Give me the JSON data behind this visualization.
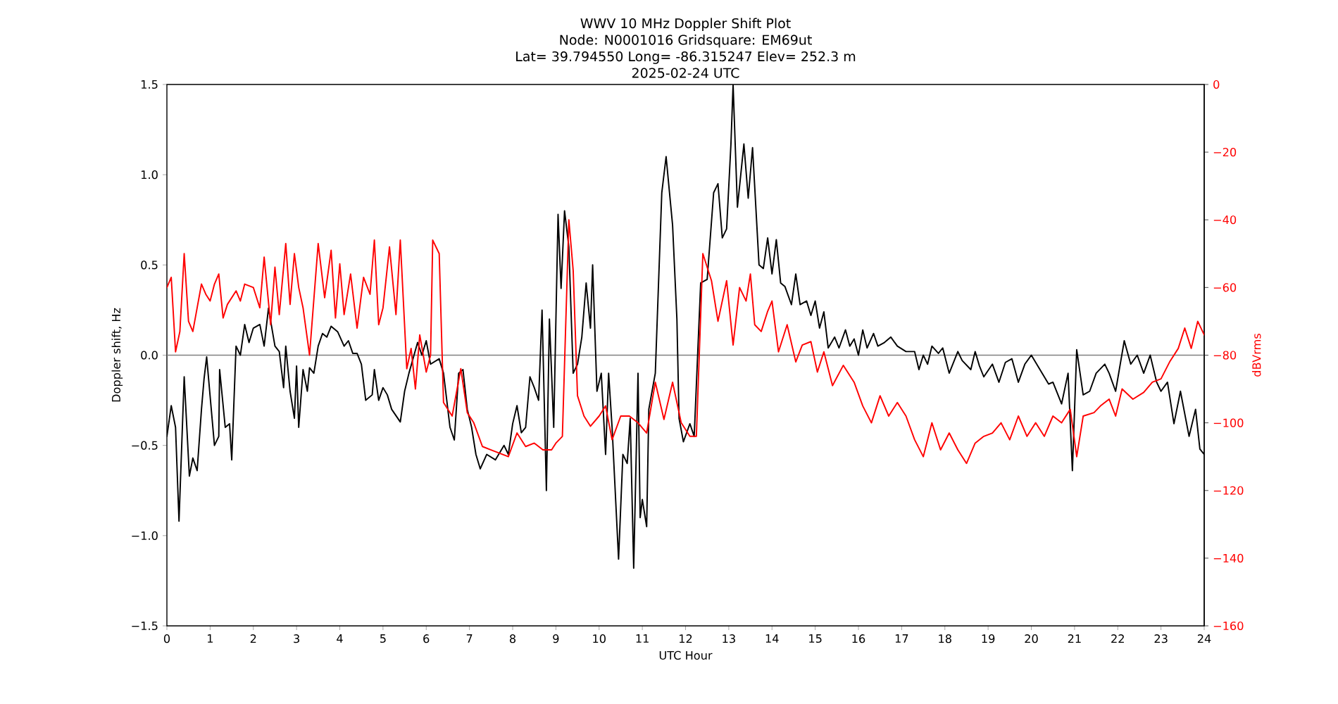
{
  "chart_data": {
    "type": "line",
    "title": "WWV 10 MHz Doppler Shift Plot",
    "subtitle": "Node:  N0001016     Gridsquare:  EM69ut",
    "annotations": [
      "Lat= 39.794550    Long= -86.315247    Elev= 252.3 m",
      "2025-02-24  UTC"
    ],
    "xlabel": "UTC Hour",
    "ylabel": "Doppler shift, Hz",
    "y2label": "dBVrms",
    "xlim": [
      0,
      24
    ],
    "xticks": [
      0,
      1,
      2,
      3,
      4,
      5,
      6,
      7,
      8,
      9,
      10,
      11,
      12,
      13,
      14,
      15,
      16,
      17,
      18,
      19,
      20,
      21,
      22,
      23,
      24
    ],
    "ylim": [
      -1.5,
      1.5
    ],
    "yticks": [
      {
        "value": -1.5,
        "label": "−1.5"
      },
      {
        "value": -1.0,
        "label": "−1.0"
      },
      {
        "value": -0.5,
        "label": "−0.5"
      },
      {
        "value": 0,
        "label": "0.0"
      },
      {
        "value": 0.5,
        "label": "0.5"
      },
      {
        "value": 1.0,
        "label": "1.0"
      },
      {
        "value": 1.5,
        "label": "1.5"
      }
    ],
    "y2lim": [
      -160,
      0
    ],
    "y2ticks": [
      {
        "value": -160,
        "label": "−160"
      },
      {
        "value": -140,
        "label": "−140"
      },
      {
        "value": -120,
        "label": "−120"
      },
      {
        "value": -100,
        "label": "−100"
      },
      {
        "value": -80,
        "label": "−80"
      },
      {
        "value": -60,
        "label": "−60"
      },
      {
        "value": -40,
        "label": "−40"
      },
      {
        "value": -20,
        "label": "−20"
      },
      0
    ],
    "marker": "none",
    "line_style": "solid",
    "ref_lines": [
      {
        "axis": "y",
        "value": 0,
        "color": "#808080"
      }
    ],
    "series": [
      {
        "color": "#000000",
        "x": [
          0,
          0.1,
          0.2,
          0.28,
          0.4,
          0.52,
          0.6,
          0.7,
          0.8,
          0.86,
          0.92,
          1.1,
          1.2,
          1.22,
          1.35,
          1.45,
          1.5,
          1.6,
          1.7,
          1.8,
          1.9,
          2.0,
          2.15,
          2.25,
          2.35,
          2.5,
          2.6,
          2.7,
          2.75,
          2.85,
          2.95,
          3.0,
          3.05,
          3.15,
          3.25,
          3.3,
          3.4,
          3.5,
          3.6,
          3.7,
          3.8,
          3.95,
          4.1,
          4.2,
          4.3,
          4.4,
          4.5,
          4.6,
          4.75,
          4.8,
          4.9,
          5.0,
          5.1,
          5.2,
          5.4,
          5.5,
          5.6,
          5.8,
          5.9,
          6.0,
          6.1,
          6.3,
          6.4,
          6.55,
          6.65,
          6.75,
          6.85,
          6.95,
          7.05,
          7.15,
          7.25,
          7.4,
          7.6,
          7.8,
          7.9,
          8.0,
          8.1,
          8.2,
          8.3,
          8.4,
          8.5,
          8.6,
          8.68,
          8.78,
          8.85,
          8.95,
          9.05,
          9.12,
          9.2,
          9.3,
          9.4,
          9.5,
          9.6,
          9.7,
          9.8,
          9.85,
          9.95,
          10.05,
          10.15,
          10.22,
          10.3,
          10.45,
          10.55,
          10.65,
          10.72,
          10.8,
          10.9,
          10.95,
          11.0,
          11.1,
          11.15,
          11.3,
          11.45,
          11.55,
          11.7,
          11.8,
          11.85,
          11.95,
          12.1,
          12.2,
          12.35,
          12.5,
          12.65,
          12.75,
          12.85,
          12.95,
          13.05,
          13.1,
          13.2,
          13.35,
          13.45,
          13.55,
          13.7,
          13.8,
          13.9,
          14.0,
          14.1,
          14.2,
          14.3,
          14.45,
          14.55,
          14.65,
          14.8,
          14.9,
          15.0,
          15.1,
          15.2,
          15.3,
          15.45,
          15.55,
          15.7,
          15.8,
          15.9,
          16.0,
          16.1,
          16.2,
          16.35,
          16.45,
          16.6,
          16.75,
          16.9,
          17.1,
          17.3,
          17.4,
          17.5,
          17.6,
          17.7,
          17.85,
          17.95,
          18.1,
          18.3,
          18.4,
          18.6,
          18.7,
          18.8,
          18.9,
          19.1,
          19.25,
          19.4,
          19.55,
          19.7,
          19.85,
          20.0,
          20.2,
          20.4,
          20.5,
          20.7,
          20.85,
          20.95,
          21.05,
          21.2,
          21.35,
          21.5,
          21.7,
          21.8,
          21.95,
          22.15,
          22.3,
          22.45,
          22.6,
          22.75,
          22.9,
          23.0,
          23.15,
          23.3,
          23.45,
          23.65,
          23.8,
          23.9,
          24.0
        ],
        "values": [
          -0.45,
          -0.28,
          -0.4,
          -0.92,
          -0.12,
          -0.67,
          -0.57,
          -0.64,
          -0.3,
          -0.13,
          -0.01,
          -0.5,
          -0.45,
          -0.08,
          -0.4,
          -0.38,
          -0.58,
          0.05,
          0.0,
          0.17,
          0.07,
          0.15,
          0.17,
          0.05,
          0.26,
          0.05,
          0.02,
          -0.18,
          0.05,
          -0.2,
          -0.35,
          -0.06,
          -0.4,
          -0.08,
          -0.2,
          -0.07,
          -0.1,
          0.05,
          0.12,
          0.1,
          0.16,
          0.13,
          0.05,
          0.08,
          0.01,
          0.01,
          -0.05,
          -0.25,
          -0.22,
          -0.08,
          -0.25,
          -0.18,
          -0.22,
          -0.3,
          -0.37,
          -0.2,
          -0.1,
          0.07,
          0.0,
          0.08,
          -0.05,
          -0.02,
          -0.1,
          -0.4,
          -0.47,
          -0.1,
          -0.08,
          -0.3,
          -0.4,
          -0.55,
          -0.63,
          -0.55,
          -0.58,
          -0.5,
          -0.55,
          -0.38,
          -0.28,
          -0.43,
          -0.4,
          -0.12,
          -0.18,
          -0.25,
          0.25,
          -0.75,
          0.2,
          -0.4,
          0.78,
          0.37,
          0.8,
          0.6,
          -0.1,
          -0.05,
          0.1,
          0.4,
          0.15,
          0.5,
          -0.2,
          -0.1,
          -0.55,
          -0.1,
          -0.4,
          -1.13,
          -0.55,
          -0.6,
          -0.35,
          -1.18,
          -0.1,
          -0.9,
          -0.8,
          -0.95,
          -0.3,
          -0.1,
          0.9,
          1.1,
          0.72,
          0.2,
          -0.35,
          -0.48,
          -0.38,
          -0.45,
          0.4,
          0.42,
          0.9,
          0.95,
          0.65,
          0.7,
          1.17,
          1.5,
          0.82,
          1.17,
          0.87,
          1.15,
          0.5,
          0.48,
          0.65,
          0.45,
          0.64,
          0.4,
          0.38,
          0.28,
          0.45,
          0.28,
          0.3,
          0.22,
          0.3,
          0.15,
          0.24,
          0.04,
          0.1,
          0.04,
          0.14,
          0.05,
          0.09,
          0.0,
          0.14,
          0.04,
          0.12,
          0.05,
          0.07,
          0.1,
          0.05,
          0.02,
          0.02,
          -0.08,
          0.0,
          -0.05,
          0.05,
          0.01,
          0.04,
          -0.1,
          0.02,
          -0.03,
          -0.08,
          0.02,
          -0.06,
          -0.12,
          -0.05,
          -0.15,
          -0.04,
          -0.02,
          -0.15,
          -0.05,
          0.0,
          -0.08,
          -0.16,
          -0.15,
          -0.27,
          -0.1,
          -0.64,
          0.03,
          -0.22,
          -0.2,
          -0.1,
          -0.05,
          -0.1,
          -0.2,
          0.08,
          -0.05,
          0.0,
          -0.1,
          0.0,
          -0.15,
          -0.2,
          -0.15,
          -0.38,
          -0.2,
          -0.45,
          -0.3,
          -0.52,
          -0.55
        ]
      },
      {
        "color": "#ff0000",
        "axis": "y2",
        "x": [
          0,
          0.1,
          0.2,
          0.3,
          0.4,
          0.5,
          0.6,
          0.7,
          0.8,
          0.9,
          1.0,
          1.1,
          1.2,
          1.3,
          1.4,
          1.6,
          1.7,
          1.8,
          2.0,
          2.15,
          2.25,
          2.4,
          2.5,
          2.6,
          2.75,
          2.85,
          2.95,
          3.05,
          3.15,
          3.3,
          3.5,
          3.65,
          3.8,
          3.9,
          4.0,
          4.1,
          4.25,
          4.4,
          4.55,
          4.7,
          4.8,
          4.9,
          5.0,
          5.15,
          5.3,
          5.4,
          5.55,
          5.65,
          5.75,
          5.85,
          6.0,
          6.1,
          6.15,
          6.3,
          6.4,
          6.6,
          6.8,
          6.95,
          7.1,
          7.3,
          7.5,
          7.7,
          7.9,
          8.1,
          8.3,
          8.5,
          8.7,
          8.9,
          9.0,
          9.15,
          9.3,
          9.4,
          9.5,
          9.65,
          9.8,
          10.0,
          10.15,
          10.3,
          10.5,
          10.7,
          10.9,
          11.1,
          11.3,
          11.5,
          11.7,
          11.9,
          12.1,
          12.25,
          12.4,
          12.6,
          12.75,
          12.95,
          13.1,
          13.25,
          13.4,
          13.5,
          13.6,
          13.75,
          13.9,
          14.0,
          14.15,
          14.35,
          14.55,
          14.7,
          14.9,
          15.05,
          15.2,
          15.4,
          15.65,
          15.9,
          16.1,
          16.3,
          16.5,
          16.7,
          16.9,
          17.1,
          17.3,
          17.5,
          17.7,
          17.9,
          18.1,
          18.3,
          18.5,
          18.7,
          18.9,
          19.1,
          19.3,
          19.5,
          19.7,
          19.9,
          20.1,
          20.3,
          20.5,
          20.7,
          20.9,
          21.05,
          21.2,
          21.45,
          21.6,
          21.8,
          21.95,
          22.1,
          22.35,
          22.6,
          22.8,
          23.0,
          23.2,
          23.4,
          23.55,
          23.7,
          23.85,
          24.0
        ],
        "values": [
          -60,
          -57,
          -79,
          -73,
          -50,
          -70,
          -73,
          -66,
          -59,
          -62,
          -64,
          -59,
          -56,
          -69,
          -65,
          -61,
          -64,
          -59,
          -60,
          -66,
          -51,
          -71,
          -54,
          -68,
          -47,
          -65,
          -50,
          -60,
          -66,
          -80,
          -47,
          -63,
          -49,
          -69,
          -53,
          -68,
          -56,
          -72,
          -57,
          -62,
          -46,
          -71,
          -66,
          -48,
          -68,
          -46,
          -84,
          -78,
          -90,
          -74,
          -85,
          -80,
          -46,
          -50,
          -94,
          -98,
          -84,
          -97,
          -100,
          -107,
          -108,
          -109,
          -110,
          -103,
          -107,
          -106,
          -108,
          -108,
          -106,
          -104,
          -40,
          -55,
          -92,
          -98,
          -101,
          -98,
          -95,
          -105,
          -98,
          -98,
          -100,
          -103,
          -88,
          -99,
          -88,
          -100,
          -104,
          -104,
          -50,
          -58,
          -70,
          -58,
          -77,
          -60,
          -64,
          -56,
          -71,
          -73,
          -67,
          -64,
          -79,
          -71,
          -82,
          -77,
          -76,
          -85,
          -79,
          -89,
          -83,
          -88,
          -95,
          -100,
          -92,
          -98,
          -94,
          -98,
          -105,
          -110,
          -100,
          -108,
          -103,
          -108,
          -112,
          -106,
          -104,
          -103,
          -100,
          -105,
          -98,
          -104,
          -100,
          -104,
          -98,
          -100,
          -96,
          -110,
          -98,
          -97,
          -95,
          -93,
          -98,
          -90,
          -93,
          -91,
          -88,
          -87,
          -82,
          -78,
          -72,
          -78,
          -70,
          -74
        ]
      }
    ]
  }
}
